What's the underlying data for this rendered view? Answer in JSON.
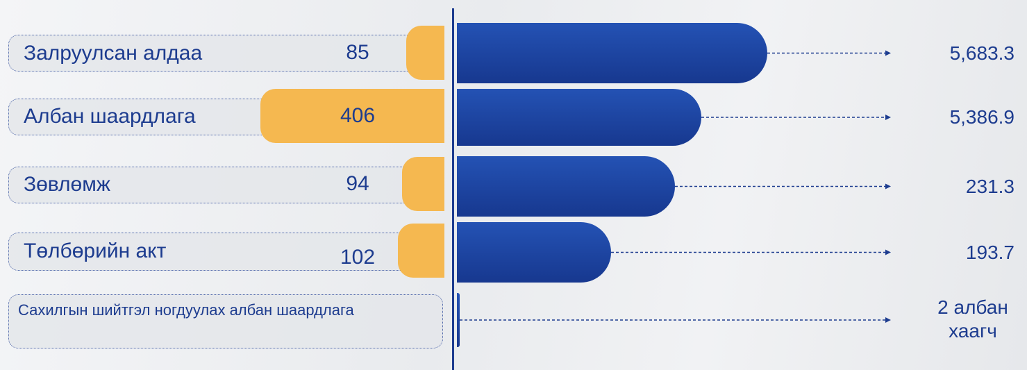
{
  "rows": [
    {
      "label": "Залруулсан алдаа",
      "count": 85,
      "amount": "5,683.3"
    },
    {
      "label": "Албан шаардлага",
      "count": 406,
      "amount": "5,386.9"
    },
    {
      "label": "Зөвлөмж",
      "count": 94,
      "amount": "231.3"
    },
    {
      "label": "Төлбөрийн акт",
      "count": 102,
      "amount": "193.7"
    },
    {
      "label": "Сахилгын шийтгэл ногдуулах албан шаардлага",
      "amount": "2 албан хаагч"
    }
  ]
}
